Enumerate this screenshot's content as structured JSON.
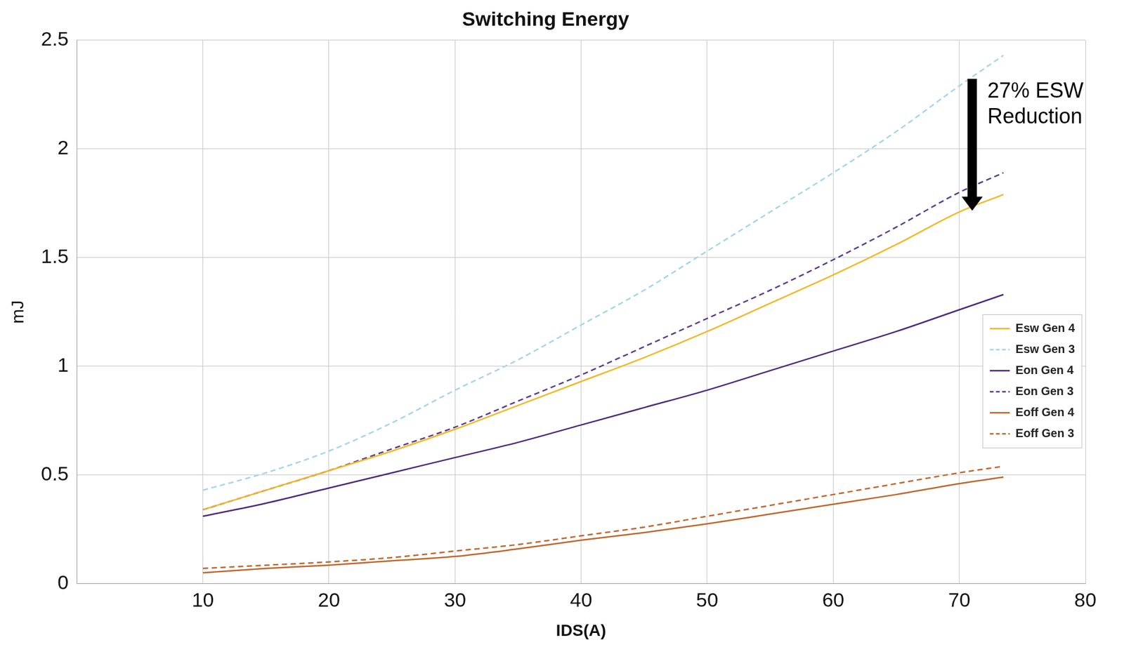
{
  "chart_data": {
    "type": "line",
    "title": "Switching Energy",
    "x_label": "IDS(A)",
    "y_label": "mJ",
    "x": [
      10,
      15,
      20,
      25,
      30,
      35,
      40,
      45,
      50,
      55,
      60,
      65,
      70,
      73.5
    ],
    "series": [
      {
        "name": "Esw Gen 4",
        "color": "#f2b824",
        "line_style": "solid",
        "marker": "none",
        "values": [
          0.34,
          0.43,
          0.52,
          0.61,
          0.71,
          0.82,
          0.93,
          1.04,
          1.16,
          1.29,
          1.42,
          1.56,
          1.71,
          1.79
        ]
      },
      {
        "name": "Esw Gen 3",
        "color": "#a3d5e8",
        "line_style": "dashed",
        "marker": "none",
        "values": [
          0.43,
          0.51,
          0.61,
          0.74,
          0.89,
          1.03,
          1.19,
          1.35,
          1.53,
          1.71,
          1.89,
          2.08,
          2.29,
          2.43
        ]
      },
      {
        "name": "Eon Gen 4",
        "color": "#4b2a7b",
        "line_style": "solid",
        "marker": "none",
        "values": [
          0.31,
          0.37,
          0.44,
          0.51,
          0.58,
          0.65,
          0.73,
          0.81,
          0.89,
          0.98,
          1.07,
          1.16,
          1.26,
          1.33
        ]
      },
      {
        "name": "Eon Gen 3",
        "color": "#5b3a8c",
        "line_style": "dashed",
        "marker": "none",
        "values": [
          0.34,
          0.43,
          0.52,
          0.62,
          0.72,
          0.84,
          0.96,
          1.09,
          1.22,
          1.35,
          1.49,
          1.64,
          1.8,
          1.89
        ]
      },
      {
        "name": "Eoff Gen 4",
        "color": "#c0652a",
        "line_style": "solid",
        "marker": "none",
        "values": [
          0.05,
          0.07,
          0.085,
          0.105,
          0.125,
          0.16,
          0.2,
          0.235,
          0.275,
          0.32,
          0.365,
          0.41,
          0.46,
          0.49
        ]
      },
      {
        "name": "Eoff Gen 3",
        "color": "#c0652a",
        "line_style": "dashed",
        "marker": "none",
        "values": [
          0.07,
          0.085,
          0.1,
          0.12,
          0.15,
          0.18,
          0.22,
          0.26,
          0.31,
          0.36,
          0.41,
          0.46,
          0.51,
          0.54
        ]
      }
    ],
    "xlim": [
      0,
      80
    ],
    "xticks": [
      10,
      20,
      30,
      40,
      50,
      60,
      70,
      80
    ],
    "ylim": [
      0,
      2.5
    ],
    "yticks": [
      0,
      0.5,
      1,
      1.5,
      2,
      2.5
    ],
    "grid": true,
    "legend": "right",
    "annotation": {
      "text": [
        "27% ESW",
        "Reduction"
      ]
    }
  }
}
